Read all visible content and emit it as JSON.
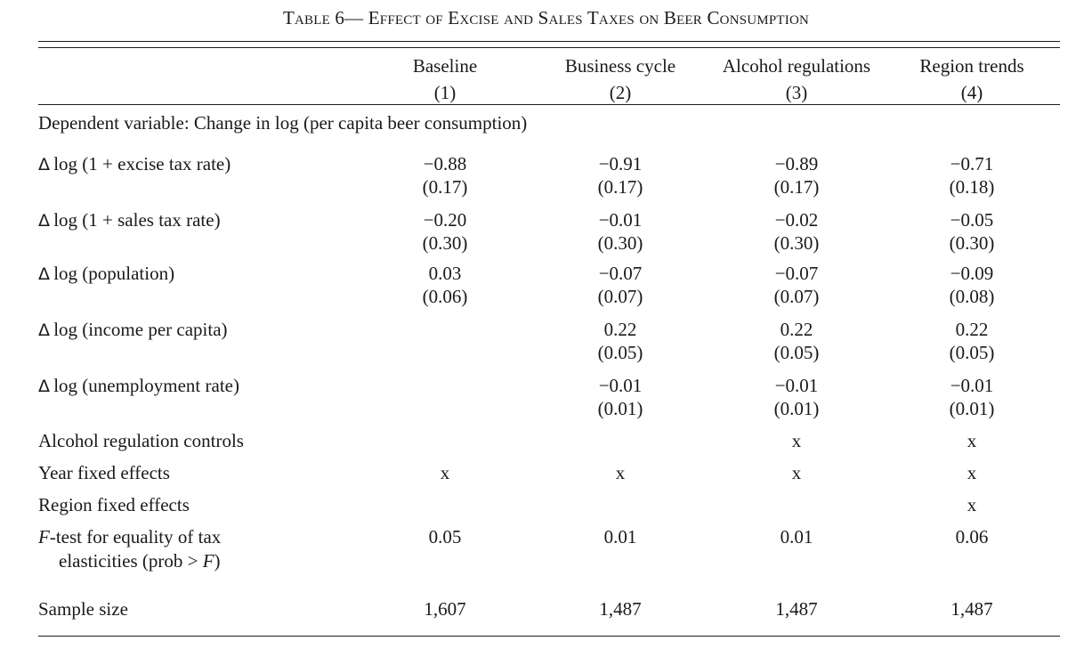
{
  "title": "Table 6— Effect of Excise and Sales Taxes on Beer Consumption",
  "columns": [
    {
      "name": "Baseline",
      "num": "(1)"
    },
    {
      "name": "Business cycle",
      "num": "(2)"
    },
    {
      "name": "Alcohol regulations",
      "num": "(3)"
    },
    {
      "name": "Region trends",
      "num": "(4)"
    }
  ],
  "dependent": "Dependent variable: Change in log (per capita beer consumption)",
  "delta_symbol": "Δ",
  "coef_rows": [
    {
      "label": "log (1 + excise tax rate)",
      "coef": [
        "−0.88",
        "−0.91",
        "−0.89",
        "−0.71"
      ],
      "se": [
        "(0.17)",
        "(0.17)",
        "(0.17)",
        "(0.18)"
      ]
    },
    {
      "label": "log (1 + sales tax rate)",
      "coef": [
        "−0.20",
        "−0.01",
        "−0.02",
        "−0.05"
      ],
      "se": [
        "(0.30)",
        "(0.30)",
        "(0.30)",
        "(0.30)"
      ]
    },
    {
      "label": "log (population)",
      "coef": [
        "0.03",
        "−0.07",
        "−0.07",
        "−0.09"
      ],
      "se": [
        "(0.06)",
        "(0.07)",
        "(0.07)",
        "(0.08)"
      ]
    },
    {
      "label": "log (income per capita)",
      "coef": [
        "",
        "0.22",
        "0.22",
        "0.22"
      ],
      "se": [
        "",
        "(0.05)",
        "(0.05)",
        "(0.05)"
      ]
    },
    {
      "label": "log (unemployment rate)",
      "coef": [
        "",
        "−0.01",
        "−0.01",
        "−0.01"
      ],
      "se": [
        "",
        "(0.01)",
        "(0.01)",
        "(0.01)"
      ]
    }
  ],
  "controls": [
    {
      "label": "Alcohol regulation controls",
      "vals": [
        "",
        "",
        "x",
        "x"
      ]
    },
    {
      "label": "Year fixed effects",
      "vals": [
        "x",
        "x",
        "x",
        "x"
      ]
    },
    {
      "label": "Region fixed effects",
      "vals": [
        "",
        "",
        "",
        "x"
      ]
    }
  ],
  "ftest": {
    "label_f": "F",
    "label_1": "-test for equality of tax",
    "label_2a": "elasticities (prob > ",
    "label_2b": ")",
    "vals": [
      "0.05",
      "0.01",
      "0.01",
      "0.06"
    ]
  },
  "sample": {
    "label": "Sample size",
    "vals": [
      "1,607",
      "1,487",
      "1,487",
      "1,487"
    ]
  }
}
